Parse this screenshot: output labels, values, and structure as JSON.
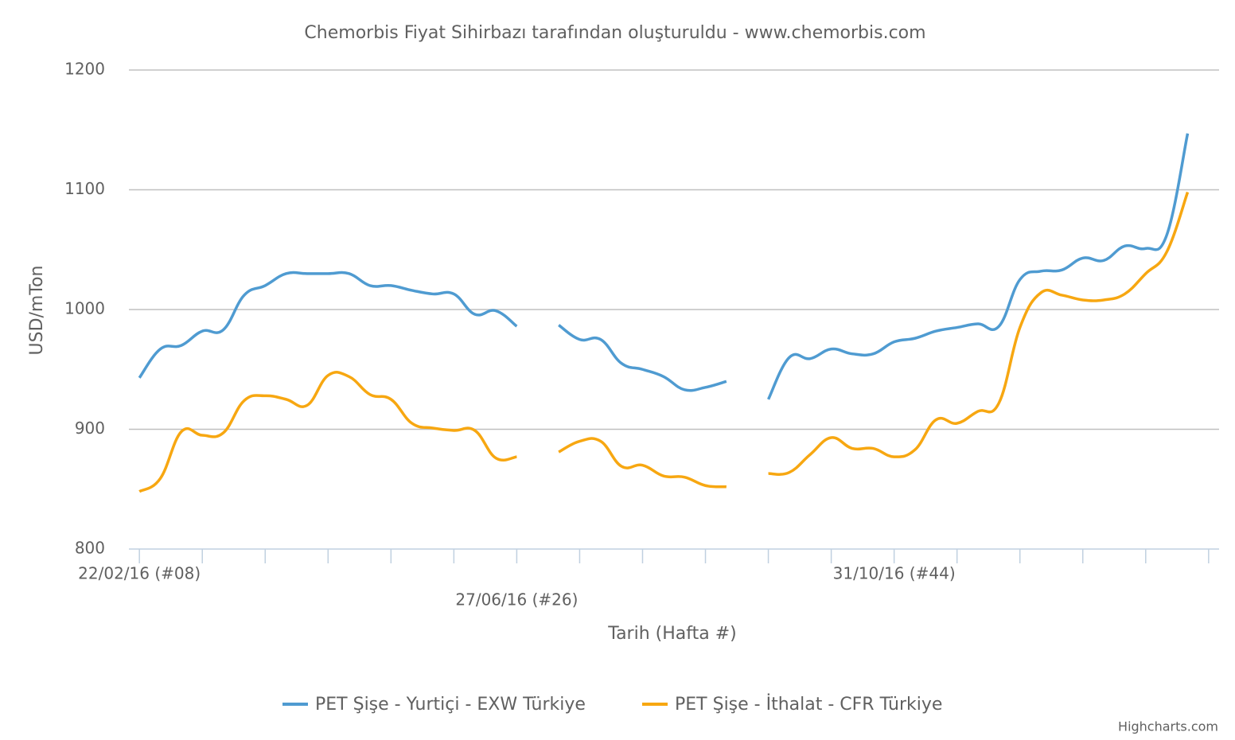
{
  "chart_data": {
    "type": "line",
    "title": "Chemorbis Fiyat Sihirbazı tarafından oluşturuldu - www.chemorbis.com",
    "x_label": "Tarih (Hafta #)",
    "y_label": "USD/mTon",
    "credits": "Highcharts.com",
    "categories": [
      "22/02/16 (#08)",
      null,
      null,
      null,
      null,
      null,
      null,
      null,
      null,
      null,
      null,
      null,
      null,
      null,
      null,
      null,
      null,
      null,
      "27/06/16 (#26)",
      null,
      null,
      null,
      null,
      null,
      null,
      null,
      null,
      null,
      null,
      null,
      null,
      null,
      null,
      null,
      null,
      null,
      "31/10/16 (#44)",
      null,
      null,
      null,
      null,
      null,
      null,
      null,
      null,
      null,
      null,
      null,
      null,
      null,
      null,
      null
    ],
    "series": [
      {
        "name": "PET Şişe - Yurtiçi - EXW Türkiye",
        "color": "#4f9bd1",
        "values": [
          943,
          967,
          970,
          982,
          983,
          1012,
          1020,
          1030,
          1030,
          1030,
          1030,
          1020,
          1020,
          1016,
          1013,
          1013,
          996,
          999,
          986,
          null,
          987,
          975,
          975,
          955,
          950,
          944,
          933,
          935,
          940,
          null,
          925,
          960,
          959,
          967,
          963,
          963,
          973,
          976,
          982,
          985,
          988,
          986,
          1025,
          1032,
          1033,
          1043,
          1041,
          1053,
          1051,
          1062,
          1147,
          null
        ]
      },
      {
        "name": "PET Şişe - İthalat - CFR Türkiye",
        "color": "#f7a711",
        "values": [
          848,
          859,
          898,
          895,
          897,
          924,
          928,
          925,
          920,
          945,
          944,
          929,
          925,
          905,
          901,
          899,
          899,
          876,
          877,
          null,
          881,
          890,
          890,
          869,
          870,
          861,
          860,
          853,
          852,
          null,
          863,
          864,
          879,
          893,
          884,
          884,
          877,
          883,
          908,
          905,
          915,
          922,
          985,
          1014,
          1012,
          1008,
          1008,
          1013,
          1030,
          1048,
          1098,
          null
        ]
      }
    ],
    "ylim": [
      800,
      1200
    ],
    "yticks": [
      800,
      900,
      1000,
      1100,
      1200
    ],
    "grid": true,
    "legend": "bottom"
  }
}
